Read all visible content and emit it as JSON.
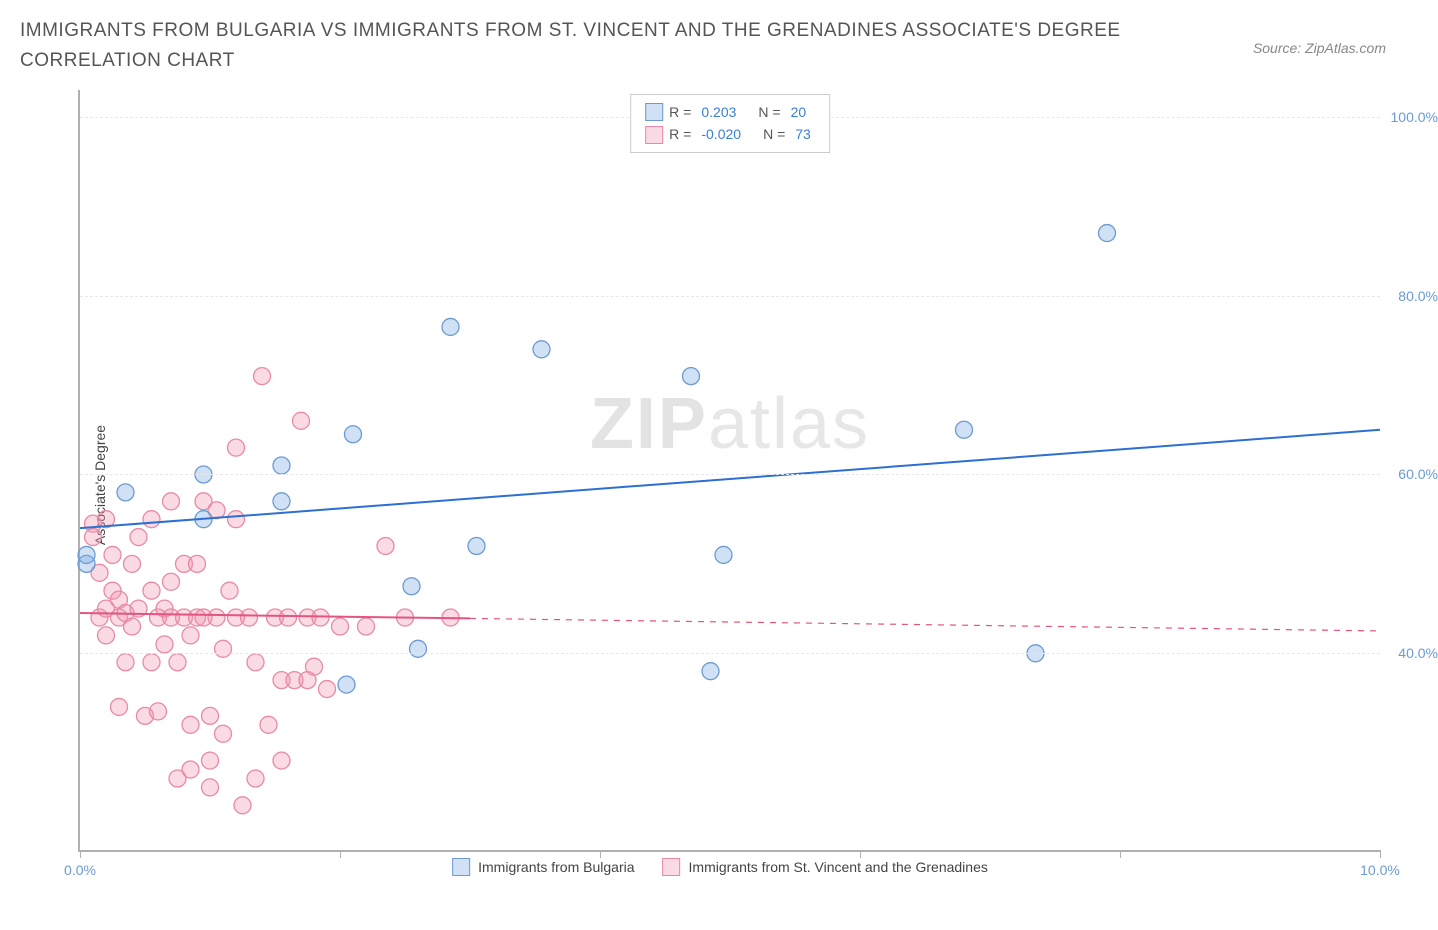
{
  "title": "IMMIGRANTS FROM BULGARIA VS IMMIGRANTS FROM ST. VINCENT AND THE GRENADINES ASSOCIATE'S DEGREE CORRELATION CHART",
  "source": "Source: ZipAtlas.com",
  "watermark_bold": "ZIP",
  "watermark_rest": "atlas",
  "y_axis_title": "Associate's Degree",
  "legend_top": {
    "s1": {
      "r_label": "R =",
      "r_value": "0.203",
      "n_label": "N =",
      "n_value": "20"
    },
    "s2": {
      "r_label": "R =",
      "r_value": "-0.020",
      "n_label": "N =",
      "n_value": "73"
    }
  },
  "legend_bottom": {
    "s1": "Immigrants from Bulgaria",
    "s2": "Immigrants from St. Vincent and the Grenadines"
  },
  "chart": {
    "type": "scatter",
    "xlim": [
      0,
      10
    ],
    "ylim": [
      18,
      103
    ],
    "x_ticks": [
      0,
      2,
      4,
      6,
      8,
      10
    ],
    "x_tick_labels": [
      "0.0%",
      "",
      "",
      "",
      "",
      "10.0%"
    ],
    "y_ticks": [
      40,
      60,
      80,
      100
    ],
    "y_tick_labels": [
      "40.0%",
      "60.0%",
      "80.0%",
      "100.0%"
    ],
    "background_color": "#ffffff",
    "grid_color": "#e8e8e8",
    "axis_color": "#b0b0b0",
    "marker_radius": 8.5,
    "marker_stroke_width": 1.3,
    "series": [
      {
        "name": "Immigrants from Bulgaria",
        "color_fill": "rgba(120,170,225,0.35)",
        "color_stroke": "#6b9bd1",
        "trend_color": "#2d6fd2",
        "trend_width": 2,
        "trend": {
          "x1": 0,
          "y1": 54,
          "x2": 10,
          "y2": 65
        },
        "points": [
          [
            0.05,
            50
          ],
          [
            0.05,
            51
          ],
          [
            0.35,
            58
          ],
          [
            0.95,
            55
          ],
          [
            0.95,
            60
          ],
          [
            1.55,
            61
          ],
          [
            1.55,
            57
          ],
          [
            2.05,
            36.5
          ],
          [
            2.1,
            64.5
          ],
          [
            2.6,
            40.5
          ],
          [
            2.55,
            47.5
          ],
          [
            2.85,
            76.5
          ],
          [
            3.05,
            52
          ],
          [
            3.55,
            74
          ],
          [
            4.7,
            71
          ],
          [
            4.85,
            38
          ],
          [
            4.95,
            51
          ],
          [
            6.8,
            65
          ],
          [
            7.35,
            40
          ],
          [
            7.9,
            87
          ]
        ]
      },
      {
        "name": "Immigrants from St. Vincent and the Grenadines",
        "color_fill": "rgba(240,150,175,0.35)",
        "color_stroke": "#e88aa6",
        "trend_color": "#e25580",
        "trend_width": 2,
        "trend_solid_until": 3.0,
        "trend": {
          "x1": 0,
          "y1": 44.5,
          "x2": 10,
          "y2": 42.5
        },
        "points": [
          [
            0.1,
            54.5
          ],
          [
            0.1,
            53
          ],
          [
            0.15,
            44
          ],
          [
            0.15,
            49
          ],
          [
            0.2,
            55
          ],
          [
            0.2,
            45
          ],
          [
            0.2,
            42
          ],
          [
            0.25,
            51
          ],
          [
            0.25,
            47
          ],
          [
            0.3,
            44
          ],
          [
            0.3,
            46
          ],
          [
            0.3,
            34
          ],
          [
            0.35,
            39
          ],
          [
            0.35,
            44.5
          ],
          [
            0.4,
            50
          ],
          [
            0.4,
            43
          ],
          [
            0.45,
            45
          ],
          [
            0.45,
            53
          ],
          [
            0.5,
            33
          ],
          [
            0.55,
            47
          ],
          [
            0.55,
            55
          ],
          [
            0.55,
            39
          ],
          [
            0.6,
            44
          ],
          [
            0.6,
            33.5
          ],
          [
            0.65,
            45
          ],
          [
            0.65,
            41
          ],
          [
            0.7,
            57
          ],
          [
            0.7,
            48
          ],
          [
            0.7,
            44
          ],
          [
            0.75,
            39
          ],
          [
            0.75,
            26
          ],
          [
            0.8,
            50
          ],
          [
            0.8,
            44
          ],
          [
            0.85,
            42
          ],
          [
            0.85,
            32
          ],
          [
            0.85,
            27
          ],
          [
            0.9,
            50
          ],
          [
            0.9,
            44
          ],
          [
            0.95,
            57
          ],
          [
            0.95,
            44
          ],
          [
            1.0,
            28
          ],
          [
            1.0,
            33
          ],
          [
            1.0,
            25
          ],
          [
            1.05,
            56
          ],
          [
            1.05,
            44
          ],
          [
            1.1,
            40.5
          ],
          [
            1.1,
            31
          ],
          [
            1.15,
            47
          ],
          [
            1.2,
            63
          ],
          [
            1.2,
            55
          ],
          [
            1.2,
            44
          ],
          [
            1.25,
            23
          ],
          [
            1.3,
            44
          ],
          [
            1.35,
            26
          ],
          [
            1.35,
            39
          ],
          [
            1.4,
            71
          ],
          [
            1.45,
            32
          ],
          [
            1.5,
            44
          ],
          [
            1.55,
            37
          ],
          [
            1.55,
            28
          ],
          [
            1.6,
            44
          ],
          [
            1.65,
            37
          ],
          [
            1.7,
            66
          ],
          [
            1.75,
            37
          ],
          [
            1.75,
            44
          ],
          [
            1.8,
            38.5
          ],
          [
            1.85,
            44
          ],
          [
            1.9,
            36
          ],
          [
            2.0,
            43
          ],
          [
            2.2,
            43
          ],
          [
            2.35,
            52
          ],
          [
            2.5,
            44
          ],
          [
            2.85,
            44
          ]
        ]
      }
    ]
  }
}
